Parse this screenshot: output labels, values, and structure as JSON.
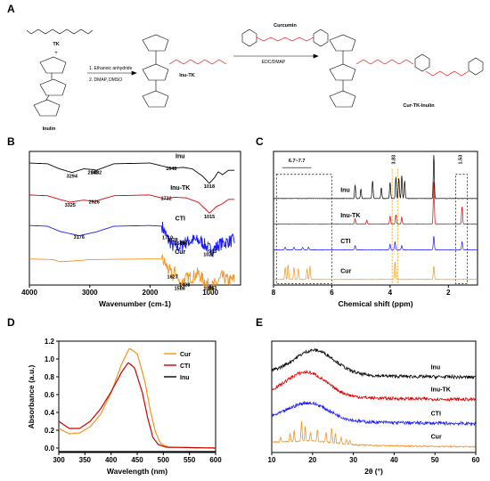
{
  "panel_labels": [
    "A",
    "B",
    "C",
    "D",
    "E"
  ],
  "scheme": {
    "reagents": [
      "TK",
      "Inulin",
      "Inu-TK",
      "Curcumin",
      "Cur-TK-Inulin"
    ],
    "step1": [
      "1. Ethanoic anhydride",
      "2. DMAP, DMSO"
    ],
    "step2": "EDC/DMAP",
    "plus": "+"
  },
  "colors": {
    "Inu": "#000000",
    "Inu-TK": "#e00000",
    "CTI": "#1a1aff",
    "Cur": "#f7941d",
    "ref_lines": "#e8a000"
  },
  "chart_data": [
    {
      "panel": "B",
      "type": "line",
      "title": "",
      "xlabel": "Wavenumber (cm-1)",
      "ylabel": "",
      "xlim": [
        4000,
        500
      ],
      "x_ticks": [
        "4000",
        "3000",
        "2000",
        "1000"
      ],
      "series": [
        {
          "name": "Inu",
          "color": "#000000",
          "offset": 8.4,
          "points": [
            [
              4000,
              0
            ],
            [
              3700,
              -0.05
            ],
            [
              3500,
              -0.4
            ],
            [
              3294,
              -0.65
            ],
            [
              3100,
              -0.4
            ],
            [
              2942,
              -0.45
            ],
            [
              2892,
              -0.5
            ],
            [
              2600,
              -0.05
            ],
            [
              2000,
              0
            ],
            [
              1648,
              -0.35
            ],
            [
              1450,
              -0.3
            ],
            [
              1300,
              -0.4
            ],
            [
              1130,
              -0.9
            ],
            [
              1018,
              -1.4
            ],
            [
              930,
              -1.0
            ],
            [
              870,
              -0.6
            ],
            [
              800,
              -0.8
            ],
            [
              700,
              -0.5
            ],
            [
              600,
              -0.5
            ]
          ]
        },
        {
          "name": "Inu-TK",
          "color": "#e00000",
          "offset": 6.2,
          "points": [
            [
              4000,
              0
            ],
            [
              3700,
              -0.05
            ],
            [
              3500,
              -0.3
            ],
            [
              3325,
              -0.5
            ],
            [
              3100,
              -0.35
            ],
            [
              2926,
              -0.45
            ],
            [
              2600,
              -0.05
            ],
            [
              2000,
              0
            ],
            [
              1732,
              -0.3
            ],
            [
              1600,
              -0.15
            ],
            [
              1400,
              -0.2
            ],
            [
              1200,
              -0.5
            ],
            [
              1015,
              -1.25
            ],
            [
              900,
              -0.8
            ],
            [
              800,
              -0.6
            ],
            [
              700,
              -0.3
            ],
            [
              600,
              -0.3
            ]
          ]
        },
        {
          "name": "CTI",
          "color": "#1a1aff",
          "offset": 4.1,
          "points": [
            [
              4000,
              0
            ],
            [
              3700,
              -0.05
            ],
            [
              3500,
              -0.4
            ],
            [
              3176,
              -0.7
            ],
            [
              2900,
              -0.45
            ],
            [
              2600,
              -0.05
            ],
            [
              2000,
              0
            ],
            [
              1800,
              -0.05
            ],
            [
              1710,
              -0.9
            ],
            [
              1628,
              -1.4
            ],
            [
              1510,
              -1.5
            ],
            [
              1427,
              -1.2
            ],
            [
              1280,
              -1.0
            ],
            [
              1150,
              -1.1
            ],
            [
              1027,
              -1.6
            ],
            [
              963,
              -1.7
            ],
            [
              850,
              -1.3
            ],
            [
              700,
              -1.1
            ],
            [
              600,
              -1.0
            ]
          ]
        },
        {
          "name": "Cur",
          "color": "#f7941d",
          "offset": 1.8,
          "points": [
            [
              4000,
              0
            ],
            [
              3600,
              -0.05
            ],
            [
              3500,
              -0.2
            ],
            [
              3300,
              -0.15
            ],
            [
              3000,
              -0.05
            ],
            [
              2000,
              0
            ],
            [
              1800,
              0
            ],
            [
              1627,
              -1.2
            ],
            [
              1580,
              -0.8
            ],
            [
              1508,
              -1.8
            ],
            [
              1428,
              -1.4
            ],
            [
              1280,
              -1.2
            ],
            [
              1200,
              -1.0
            ],
            [
              1150,
              -1.3
            ],
            [
              1026,
              -1.8
            ],
            [
              963,
              -1.9
            ],
            [
              850,
              -1.5
            ],
            [
              810,
              -1.2
            ],
            [
              700,
              -1.5
            ],
            [
              600,
              -1.4
            ]
          ]
        }
      ],
      "annotations": [
        "3294",
        "2942",
        "2892",
        "1648",
        "1018",
        "3325",
        "2926",
        "1732",
        "1015",
        "3176",
        "1710",
        "1628",
        "1510",
        "1427",
        "963",
        "1027",
        "1627",
        "1508",
        "1428",
        "1026",
        "963"
      ]
    },
    {
      "panel": "C",
      "type": "line",
      "title": "",
      "xlabel": "Chemical shift (ppm)",
      "ylabel": "",
      "xlim": [
        8,
        1
      ],
      "x_ticks": [
        "8",
        "6",
        "4",
        "2"
      ],
      "series": [
        {
          "name": "Inu",
          "color": "#000000",
          "offset": 6.0,
          "peaks": [
            [
              5.2,
              1.0
            ],
            [
              5.0,
              0.7
            ],
            [
              4.6,
              1.3
            ],
            [
              4.3,
              0.8
            ],
            [
              4.0,
              1.2
            ],
            [
              3.8,
              1.6
            ],
            [
              3.7,
              1.5
            ],
            [
              3.6,
              1.7
            ],
            [
              3.5,
              1.3
            ],
            [
              2.5,
              3.2
            ]
          ]
        },
        {
          "name": "Inu-TK",
          "color": "#e00000",
          "offset": 4.1,
          "peaks": [
            [
              5.2,
              0.4
            ],
            [
              4.8,
              0.3
            ],
            [
              4.0,
              0.6
            ],
            [
              3.8,
              0.7
            ],
            [
              3.6,
              0.5
            ],
            [
              2.5,
              3.1
            ],
            [
              1.53,
              1.3
            ]
          ]
        },
        {
          "name": "CTI",
          "color": "#1a1aff",
          "offset": 2.2,
          "peaks": [
            [
              7.6,
              0.2
            ],
            [
              7.3,
              0.2
            ],
            [
              7.0,
              0.2
            ],
            [
              6.8,
              0.2
            ],
            [
              5.2,
              0.3
            ],
            [
              4.0,
              0.4
            ],
            [
              3.83,
              0.6
            ],
            [
              3.6,
              0.3
            ],
            [
              2.5,
              1.0
            ],
            [
              1.53,
              0.6
            ]
          ]
        },
        {
          "name": "Cur",
          "color": "#f7941d",
          "offset": 0.0,
          "peaks": [
            [
              7.6,
              0.9
            ],
            [
              7.5,
              1.1
            ],
            [
              7.3,
              0.9
            ],
            [
              7.15,
              0.8
            ],
            [
              6.85,
              0.8
            ],
            [
              6.75,
              1.0
            ],
            [
              3.83,
              1.3
            ],
            [
              2.5,
              1.0
            ]
          ]
        }
      ],
      "annotations": [
        "6.7~7.7",
        "3.83",
        "1.53"
      ]
    },
    {
      "panel": "D",
      "type": "line",
      "title": "",
      "xlabel": "Wavelength (nm)",
      "ylabel": "Absorbance (a.u.)",
      "xlim": [
        300,
        600
      ],
      "ylim": [
        -0.05,
        1.2
      ],
      "x_ticks": [
        "300",
        "350",
        "400",
        "450",
        "500",
        "550",
        "600"
      ],
      "y_ticks": [
        "0.0",
        "0.2",
        "0.4",
        "0.6",
        "0.8",
        "1.0",
        "1.2"
      ],
      "legend": "top-right",
      "series": [
        {
          "name": "Cur",
          "color": "#f7941d",
          "points": [
            [
              300,
              0.22
            ],
            [
              320,
              0.16
            ],
            [
              340,
              0.17
            ],
            [
              360,
              0.24
            ],
            [
              380,
              0.38
            ],
            [
              400,
              0.62
            ],
            [
              420,
              0.94
            ],
            [
              435,
              1.12
            ],
            [
              450,
              1.06
            ],
            [
              465,
              0.74
            ],
            [
              475,
              0.42
            ],
            [
              485,
              0.18
            ],
            [
              495,
              0.05
            ],
            [
              510,
              0.01
            ],
            [
              600,
              0.0
            ]
          ]
        },
        {
          "name": "CTI",
          "color": "#cc0000",
          "points": [
            [
              300,
              0.3
            ],
            [
              320,
              0.22
            ],
            [
              340,
              0.22
            ],
            [
              360,
              0.3
            ],
            [
              380,
              0.44
            ],
            [
              400,
              0.63
            ],
            [
              420,
              0.85
            ],
            [
              433,
              0.96
            ],
            [
              445,
              0.9
            ],
            [
              460,
              0.62
            ],
            [
              470,
              0.34
            ],
            [
              480,
              0.12
            ],
            [
              490,
              0.04
            ],
            [
              505,
              0.01
            ],
            [
              600,
              0.0
            ]
          ]
        },
        {
          "name": "Inu",
          "color": "#000000",
          "points": [
            [
              300,
              -0.04
            ],
            [
              600,
              -0.04
            ]
          ]
        }
      ]
    },
    {
      "panel": "E",
      "type": "line",
      "title": "",
      "xlabel": "2θ (°)",
      "ylabel": "",
      "xlim": [
        10,
        60
      ],
      "x_ticks": [
        "10",
        "20",
        "30",
        "40",
        "50",
        "60"
      ],
      "series": [
        {
          "name": "Inu",
          "color": "#000000",
          "offset": 7.5,
          "hump_center": 20.5,
          "hump_height": 2.6
        },
        {
          "name": "Inu-TK",
          "color": "#e00000",
          "offset": 5.1,
          "hump_center": 18.5,
          "hump_height": 2.6
        },
        {
          "name": "CTI",
          "color": "#1a1aff",
          "offset": 2.5,
          "hump_center": 19.0,
          "hump_height": 1.9
        },
        {
          "name": "Cur",
          "color": "#f7941d",
          "offset": 0.0,
          "hump_center": 20.0,
          "hump_height": 0.3,
          "peaks": [
            [
              12.2,
              0.5
            ],
            [
              14.5,
              0.9
            ],
            [
              15.5,
              1.2
            ],
            [
              17.3,
              2.1
            ],
            [
              18.2,
              1.6
            ],
            [
              19.5,
              1.0
            ],
            [
              21.2,
              1.3
            ],
            [
              23.3,
              1.1
            ],
            [
              24.7,
              1.7
            ],
            [
              25.6,
              1.0
            ],
            [
              27.0,
              0.8
            ],
            [
              28.3,
              0.6
            ],
            [
              29.1,
              0.5
            ]
          ]
        }
      ]
    }
  ]
}
